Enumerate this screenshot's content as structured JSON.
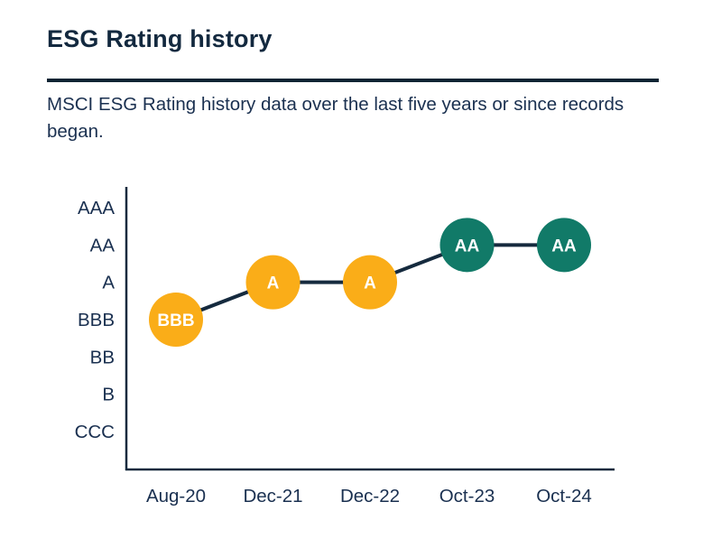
{
  "page": {
    "title": "ESG Rating history",
    "subtitle": "MSCI ESG Rating history data over the last five years or since records began."
  },
  "colors": {
    "title_navy": "#13293F",
    "text_navy": "#1A3050",
    "divider_navy": "#0D2433",
    "axis_navy": "#152A3E",
    "line_navy": "#152A3E",
    "marker_text": "#FFFFFF",
    "amber": "#FAAD18",
    "teal": "#117A68"
  },
  "chart_data": {
    "type": "line",
    "title": "ESG Rating history",
    "series_name": "MSCI ESG Rating",
    "categories": [
      "Aug-20",
      "Dec-21",
      "Dec-22",
      "Oct-23",
      "Oct-24"
    ],
    "values": [
      "BBB",
      "A",
      "A",
      "AA",
      "AA"
    ],
    "y_ticks_top_to_bottom": [
      "AAA",
      "AA",
      "A",
      "BBB",
      "BB",
      "B",
      "CCC"
    ],
    "point_colors": [
      "#FAAD18",
      "#FAAD18",
      "#FAAD18",
      "#117A68",
      "#117A68"
    ],
    "marker_shape": "circle",
    "grid": false,
    "legend": false,
    "xlabel": "",
    "ylabel": ""
  }
}
